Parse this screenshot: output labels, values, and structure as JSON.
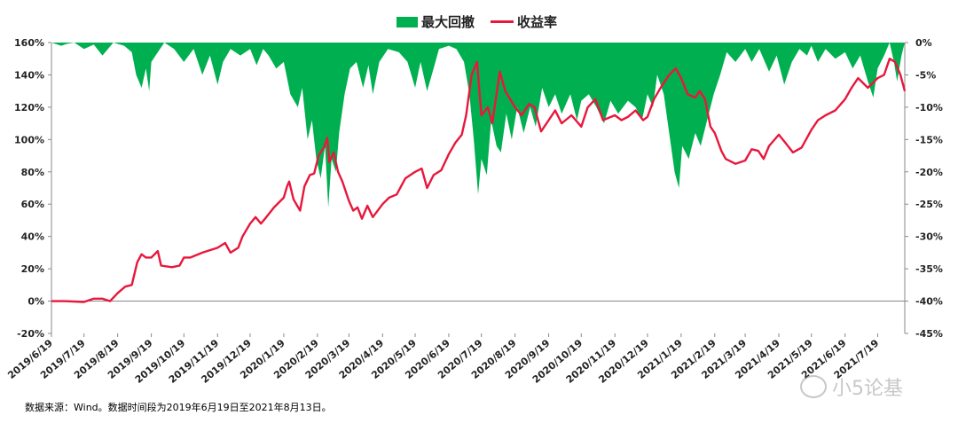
{
  "chart_data": {
    "type": "line",
    "legend": {
      "position": "top-center",
      "items": [
        {
          "name": "最大回撤",
          "kind": "area",
          "color": "#00B050"
        },
        {
          "name": "收益率",
          "kind": "line",
          "color": "#E8173C"
        }
      ]
    },
    "y_left": {
      "min": -20,
      "max": 160,
      "step": 20,
      "tick_labels": [
        "-20%",
        "0%",
        "20%",
        "40%",
        "60%",
        "80%",
        "100%",
        "120%",
        "140%",
        "160%"
      ]
    },
    "y_right": {
      "min": -45,
      "max": 0,
      "step": 5,
      "tick_labels": [
        "-45%",
        "-40%",
        "-35%",
        "-30%",
        "-25%",
        "-20%",
        "-15%",
        "-10%",
        "-5%",
        "0%"
      ]
    },
    "x_tick_labels": [
      "2019/6/19",
      "2019/7/19",
      "2019/8/19",
      "2019/9/19",
      "2019/10/19",
      "2019/11/19",
      "2019/12/19",
      "2020/1/19",
      "2020/2/19",
      "2020/3/19",
      "2020/4/19",
      "2020/5/19",
      "2020/6/19",
      "2020/7/19",
      "2020/8/19",
      "2020/9/19",
      "2020/10/19",
      "2020/11/19",
      "2020/12/19",
      "2021/1/19",
      "2021/2/19",
      "2021/3/19",
      "2021/4/19",
      "2021/5/19",
      "2021/6/19",
      "2021/7/19"
    ],
    "date_range": [
      "2019/6/19",
      "2021/8/13"
    ],
    "series": [
      {
        "name": "收益率",
        "axis": "left",
        "unit": "%",
        "points": [
          [
            "2019/6/19",
            0
          ],
          [
            "2019/7/1",
            0
          ],
          [
            "2019/7/19",
            -0.5
          ],
          [
            "2019/7/28",
            1.5
          ],
          [
            "2019/8/5",
            1.5
          ],
          [
            "2019/8/12",
            0
          ],
          [
            "2019/8/19",
            5
          ],
          [
            "2019/8/26",
            9
          ],
          [
            "2019/9/1",
            10
          ],
          [
            "2019/9/6",
            24
          ],
          [
            "2019/9/10",
            29
          ],
          [
            "2019/9/14",
            27
          ],
          [
            "2019/9/19",
            27
          ],
          [
            "2019/9/25",
            31
          ],
          [
            "2019/9/28",
            22
          ],
          [
            "2019/10/8",
            21
          ],
          [
            "2019/10/15",
            22
          ],
          [
            "2019/10/19",
            27
          ],
          [
            "2019/10/25",
            27
          ],
          [
            "2019/11/5",
            30
          ],
          [
            "2019/11/19",
            33
          ],
          [
            "2019/11/26",
            36
          ],
          [
            "2019/12/1",
            30
          ],
          [
            "2019/12/8",
            33
          ],
          [
            "2019/12/12",
            40
          ],
          [
            "2019/12/19",
            48
          ],
          [
            "2019/12/24",
            52
          ],
          [
            "2019/12/29",
            48
          ],
          [
            "2020/1/3",
            52
          ],
          [
            "2020/1/10",
            58
          ],
          [
            "2020/1/19",
            64
          ],
          [
            "2020/1/22",
            71
          ],
          [
            "2020/1/24",
            74
          ],
          [
            "2020/1/28",
            63
          ],
          [
            "2020/2/3",
            56
          ],
          [
            "2020/2/7",
            71
          ],
          [
            "2020/2/12",
            78
          ],
          [
            "2020/2/16",
            79
          ],
          [
            "2020/2/20",
            90
          ],
          [
            "2020/2/25",
            95
          ],
          [
            "2020/2/28",
            101
          ],
          [
            "2020/3/1",
            86
          ],
          [
            "2020/3/5",
            92
          ],
          [
            "2020/3/9",
            80
          ],
          [
            "2020/3/13",
            74
          ],
          [
            "2020/3/19",
            62
          ],
          [
            "2020/3/23",
            56
          ],
          [
            "2020/3/27",
            58
          ],
          [
            "2020/3/31",
            51
          ],
          [
            "2020/4/5",
            59
          ],
          [
            "2020/4/10",
            52
          ],
          [
            "2020/4/19",
            60
          ],
          [
            "2020/4/25",
            64
          ],
          [
            "2020/5/2",
            66
          ],
          [
            "2020/5/10",
            76
          ],
          [
            "2020/5/19",
            80
          ],
          [
            "2020/5/25",
            82
          ],
          [
            "2020/5/30",
            70
          ],
          [
            "2020/6/5",
            78
          ],
          [
            "2020/6/12",
            81
          ],
          [
            "2020/6/19",
            91
          ],
          [
            "2020/6/25",
            98
          ],
          [
            "2020/7/1",
            103
          ],
          [
            "2020/7/5",
            115
          ],
          [
            "2020/7/10",
            140
          ],
          [
            "2020/7/15",
            148
          ],
          [
            "2020/7/19",
            115
          ],
          [
            "2020/7/25",
            120
          ],
          [
            "2020/7/29",
            110
          ],
          [
            "2020/8/5",
            142
          ],
          [
            "2020/8/10",
            130
          ],
          [
            "2020/8/19",
            120
          ],
          [
            "2020/8/25",
            115
          ],
          [
            "2020/9/1",
            122
          ],
          [
            "2020/9/6",
            120
          ],
          [
            "2020/9/12",
            105
          ],
          [
            "2020/9/19",
            112
          ],
          [
            "2020/9/25",
            118
          ],
          [
            "2020/10/1",
            110
          ],
          [
            "2020/10/10",
            115
          ],
          [
            "2020/10/19",
            108
          ],
          [
            "2020/10/25",
            120
          ],
          [
            "2020/11/1",
            125
          ],
          [
            "2020/11/8",
            112
          ],
          [
            "2020/11/19",
            115
          ],
          [
            "2020/11/25",
            112
          ],
          [
            "2020/12/1",
            114
          ],
          [
            "2020/12/8",
            118
          ],
          [
            "2020/12/15",
            112
          ],
          [
            "2020/12/19",
            114
          ],
          [
            "2020/12/25",
            125
          ],
          [
            "2021/1/1",
            133
          ],
          [
            "2021/1/8",
            140
          ],
          [
            "2021/1/14",
            144
          ],
          [
            "2021/1/19",
            138
          ],
          [
            "2021/1/25",
            128
          ],
          [
            "2021/2/1",
            126
          ],
          [
            "2021/2/5",
            130
          ],
          [
            "2021/2/10",
            125
          ],
          [
            "2021/2/15",
            108
          ],
          [
            "2021/2/19",
            104
          ],
          [
            "2021/2/25",
            93
          ],
          [
            "2021/3/1",
            88
          ],
          [
            "2021/3/10",
            85
          ],
          [
            "2021/3/19",
            87
          ],
          [
            "2021/3/25",
            94
          ],
          [
            "2021/3/31",
            93
          ],
          [
            "2021/4/5",
            88
          ],
          [
            "2021/4/10",
            96
          ],
          [
            "2021/4/19",
            103
          ],
          [
            "2021/4/25",
            98
          ],
          [
            "2021/5/2",
            92
          ],
          [
            "2021/5/10",
            95
          ],
          [
            "2021/5/19",
            106
          ],
          [
            "2021/5/25",
            112
          ],
          [
            "2021/6/1",
            115
          ],
          [
            "2021/6/10",
            118
          ],
          [
            "2021/6/19",
            125
          ],
          [
            "2021/6/25",
            132
          ],
          [
            "2021/7/1",
            138
          ],
          [
            "2021/7/10",
            132
          ],
          [
            "2021/7/19",
            138
          ],
          [
            "2021/7/25",
            140
          ],
          [
            "2021/7/30",
            150
          ],
          [
            "2021/8/4",
            148
          ],
          [
            "2021/8/9",
            140
          ],
          [
            "2021/8/13",
            130
          ]
        ]
      },
      {
        "name": "最大回撤",
        "axis": "right",
        "unit": "%",
        "points": [
          [
            "2019/6/19",
            0
          ],
          [
            "2019/6/28",
            -0.5
          ],
          [
            "2019/7/3",
            -0.2
          ],
          [
            "2019/7/10",
            0
          ],
          [
            "2019/7/19",
            -1
          ],
          [
            "2019/7/28",
            -0.3
          ],
          [
            "2019/8/5",
            -2
          ],
          [
            "2019/8/15",
            0
          ],
          [
            "2019/8/25",
            -0.5
          ],
          [
            "2019/9/1",
            -1.5
          ],
          [
            "2019/9/5",
            -5
          ],
          [
            "2019/9/10",
            -7
          ],
          [
            "2019/9/14",
            -4
          ],
          [
            "2019/9/17",
            -7.5
          ],
          [
            "2019/9/19",
            -3
          ],
          [
            "2019/9/25",
            -1.5
          ],
          [
            "2019/10/1",
            0
          ],
          [
            "2019/10/10",
            -1
          ],
          [
            "2019/10/19",
            -3
          ],
          [
            "2019/10/28",
            -1
          ],
          [
            "2019/11/5",
            -5
          ],
          [
            "2019/11/12",
            -2
          ],
          [
            "2019/11/19",
            -6.5
          ],
          [
            "2019/11/24",
            -3
          ],
          [
            "2019/12/1",
            -1
          ],
          [
            "2019/12/10",
            -2
          ],
          [
            "2019/12/19",
            -1
          ],
          [
            "2019/12/25",
            -3.5
          ],
          [
            "2019/12/31",
            -1
          ],
          [
            "2020/1/5",
            -2
          ],
          [
            "2020/1/12",
            -4
          ],
          [
            "2020/1/19",
            -3
          ],
          [
            "2020/1/25",
            -8
          ],
          [
            "2020/2/1",
            -10
          ],
          [
            "2020/2/5",
            -7
          ],
          [
            "2020/2/10",
            -15
          ],
          [
            "2020/2/14",
            -12
          ],
          [
            "2020/2/18",
            -18
          ],
          [
            "2020/2/22",
            -21
          ],
          [
            "2020/2/26",
            -16
          ],
          [
            "2020/2/29",
            -25.5
          ],
          [
            "2020/3/3",
            -18
          ],
          [
            "2020/3/7",
            -20
          ],
          [
            "2020/3/10",
            -14
          ],
          [
            "2020/3/15",
            -8
          ],
          [
            "2020/3/20",
            -4
          ],
          [
            "2020/3/26",
            -3
          ],
          [
            "2020/4/1",
            -7
          ],
          [
            "2020/4/6",
            -3.5
          ],
          [
            "2020/4/10",
            -8
          ],
          [
            "2020/4/16",
            -3
          ],
          [
            "2020/4/24",
            -1
          ],
          [
            "2020/5/4",
            -1.5
          ],
          [
            "2020/5/12",
            -3
          ],
          [
            "2020/5/19",
            -7
          ],
          [
            "2020/5/24",
            -3
          ],
          [
            "2020/5/30",
            -7.5
          ],
          [
            "2020/6/5",
            -4
          ],
          [
            "2020/6/10",
            -1
          ],
          [
            "2020/6/19",
            -0.5
          ],
          [
            "2020/6/26",
            -1
          ],
          [
            "2020/7/3",
            -3
          ],
          [
            "2020/7/8",
            -8
          ],
          [
            "2020/7/12",
            -15
          ],
          [
            "2020/7/16",
            -23.5
          ],
          [
            "2020/7/19",
            -18
          ],
          [
            "2020/7/24",
            -20.5
          ],
          [
            "2020/7/28",
            -12
          ],
          [
            "2020/8/2",
            -16
          ],
          [
            "2020/8/6",
            -17
          ],
          [
            "2020/8/11",
            -11
          ],
          [
            "2020/8/16",
            -15
          ],
          [
            "2020/8/21",
            -10
          ],
          [
            "2020/8/27",
            -14
          ],
          [
            "2020/9/2",
            -10
          ],
          [
            "2020/9/7",
            -13
          ],
          [
            "2020/9/13",
            -7
          ],
          [
            "2020/9/19",
            -10
          ],
          [
            "2020/9/25",
            -8
          ],
          [
            "2020/10/1",
            -11
          ],
          [
            "2020/10/9",
            -8
          ],
          [
            "2020/10/15",
            -12
          ],
          [
            "2020/10/19",
            -9
          ],
          [
            "2020/10/26",
            -8
          ],
          [
            "2020/11/2",
            -10
          ],
          [
            "2020/11/9",
            -12.5
          ],
          [
            "2020/11/15",
            -9
          ],
          [
            "2020/11/22",
            -11
          ],
          [
            "2020/12/1",
            -9
          ],
          [
            "2020/12/8",
            -10
          ],
          [
            "2020/12/14",
            -12
          ],
          [
            "2020/12/19",
            -8
          ],
          [
            "2020/12/24",
            -10
          ],
          [
            "2020/12/28",
            -5
          ],
          [
            "2021/1/3",
            -8
          ],
          [
            "2021/1/8",
            -14
          ],
          [
            "2021/1/13",
            -20
          ],
          [
            "2021/1/17",
            -22.5
          ],
          [
            "2021/1/20",
            -16
          ],
          [
            "2021/1/26",
            -18
          ],
          [
            "2021/2/1",
            -14
          ],
          [
            "2021/2/6",
            -16
          ],
          [
            "2021/2/12",
            -12
          ],
          [
            "2021/2/18",
            -8
          ],
          [
            "2021/2/24",
            -5
          ],
          [
            "2021/3/2",
            -1.5
          ],
          [
            "2021/3/10",
            -3
          ],
          [
            "2021/3/19",
            -1
          ],
          [
            "2021/3/25",
            -3
          ],
          [
            "2021/4/1",
            -1
          ],
          [
            "2021/4/10",
            -4.5
          ],
          [
            "2021/4/17",
            -2
          ],
          [
            "2021/4/24",
            -6.5
          ],
          [
            "2021/5/1",
            -3
          ],
          [
            "2021/5/8",
            -1
          ],
          [
            "2021/5/15",
            -2
          ],
          [
            "2021/5/19",
            -0.5
          ],
          [
            "2021/5/25",
            -3
          ],
          [
            "2021/6/1",
            -1
          ],
          [
            "2021/6/10",
            -2.5
          ],
          [
            "2021/6/19",
            -1.5
          ],
          [
            "2021/6/26",
            -4
          ],
          [
            "2021/7/3",
            -2
          ],
          [
            "2021/7/10",
            -6
          ],
          [
            "2021/7/15",
            -8.5
          ],
          [
            "2021/7/19",
            -4
          ],
          [
            "2021/7/25",
            -2
          ],
          [
            "2021/7/30",
            0
          ],
          [
            "2021/8/3",
            -3
          ],
          [
            "2021/8/6",
            -6
          ],
          [
            "2021/8/10",
            -2
          ],
          [
            "2021/8/13",
            0
          ]
        ]
      }
    ]
  },
  "footer": {
    "source_note": "数据来源：Wind。数据时间段为2019年6月19日至2021年8月13日。"
  },
  "watermark": {
    "text": "小5论基"
  }
}
